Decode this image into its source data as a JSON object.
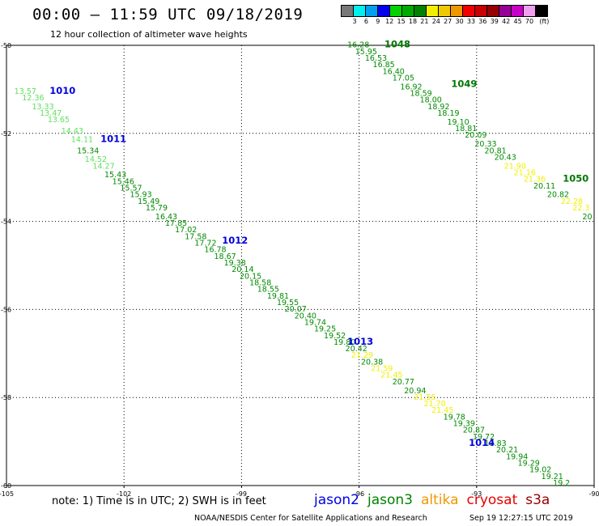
{
  "header": {
    "title": "00:00 – 11:59 UTC 09/18/2019",
    "subtitle": "12 hour collection of altimeter wave heights"
  },
  "legend": {
    "colors": [
      "#787878",
      "#00f0f0",
      "#00a0f0",
      "#0000f0",
      "#00d200",
      "#00aa00",
      "#008200",
      "#f0f000",
      "#f0c800",
      "#f09600",
      "#f00000",
      "#c80000",
      "#960000",
      "#960096",
      "#c800c8",
      "#f0a0f0",
      "#000000"
    ],
    "levels": [
      "3",
      "6",
      "9",
      "12",
      "15",
      "18",
      "21",
      "24",
      "27",
      "30",
      "33",
      "36",
      "39",
      "42",
      "45",
      "70"
    ],
    "unit": "(ft)"
  },
  "map": {
    "lon_ticks": [
      "-105",
      "-102",
      "-99",
      "-96",
      "-93",
      "-90"
    ],
    "lat_ticks": [
      "-50",
      "-52",
      "-54",
      "-56",
      "-58",
      "-60"
    ]
  },
  "tracks": [
    {
      "name": "A",
      "passes": [
        {
          "label": "1010",
          "lon": -103.9,
          "lat": -51.1
        },
        {
          "label": "1011",
          "lon": -102.6,
          "lat": -52.2
        },
        {
          "label": "1012",
          "lon": -99.5,
          "lat": -54.5
        },
        {
          "label": "1013",
          "lon": -96.3,
          "lat": -56.8
        },
        {
          "label": "1014",
          "lon": -93.2,
          "lat": -59.1
        }
      ],
      "points": [
        {
          "v": "13.57",
          "lon": -104.8,
          "lat": -51.1
        },
        {
          "v": "12.36",
          "lon": -104.6,
          "lat": -51.25
        },
        {
          "v": "13.33",
          "lon": -104.35,
          "lat": -51.45
        },
        {
          "v": "13.47",
          "lon": -104.15,
          "lat": -51.6
        },
        {
          "v": "13.65",
          "lon": -103.95,
          "lat": -51.75
        },
        {
          "v": "14.43",
          "lon": -103.6,
          "lat": -52.0
        },
        {
          "v": "14.11",
          "lon": -103.35,
          "lat": -52.2
        },
        {
          "v": "15.34",
          "lon": -103.2,
          "lat": -52.45
        },
        {
          "v": "14.52",
          "lon": -103.0,
          "lat": -52.65
        },
        {
          "v": "14.27",
          "lon": -102.8,
          "lat": -52.8
        },
        {
          "v": "15.43",
          "lon": -102.5,
          "lat": -53.0
        },
        {
          "v": "15.46",
          "lon": -102.3,
          "lat": -53.15
        },
        {
          "v": "15.57",
          "lon": -102.1,
          "lat": -53.3
        },
        {
          "v": "15.93",
          "lon": -101.85,
          "lat": -53.45
        },
        {
          "v": "15.49",
          "lon": -101.65,
          "lat": -53.6
        },
        {
          "v": "15.79",
          "lon": -101.45,
          "lat": -53.75
        },
        {
          "v": "16.43",
          "lon": -101.2,
          "lat": -53.95
        },
        {
          "v": "17.85",
          "lon": -100.95,
          "lat": -54.1
        },
        {
          "v": "17.02",
          "lon": -100.7,
          "lat": -54.25
        },
        {
          "v": "17.58",
          "lon": -100.45,
          "lat": -54.4
        },
        {
          "v": "17.72",
          "lon": -100.2,
          "lat": -54.55
        },
        {
          "v": "16.78",
          "lon": -99.95,
          "lat": -54.7
        },
        {
          "v": "18.67",
          "lon": -99.7,
          "lat": -54.85
        },
        {
          "v": "19.38",
          "lon": -99.45,
          "lat": -55.0
        },
        {
          "v": "20.14",
          "lon": -99.25,
          "lat": -55.15
        },
        {
          "v": "20.15",
          "lon": -99.05,
          "lat": -55.3
        },
        {
          "v": "18.58",
          "lon": -98.8,
          "lat": -55.45
        },
        {
          "v": "18.55",
          "lon": -98.6,
          "lat": -55.6
        },
        {
          "v": "19.81",
          "lon": -98.35,
          "lat": -55.75
        },
        {
          "v": "19.55",
          "lon": -98.1,
          "lat": -55.9
        },
        {
          "v": "20.07",
          "lon": -97.9,
          "lat": -56.05
        },
        {
          "v": "20.40",
          "lon": -97.65,
          "lat": -56.2
        },
        {
          "v": "19.74",
          "lon": -97.4,
          "lat": -56.35
        },
        {
          "v": "19.25",
          "lon": -97.15,
          "lat": -56.5
        },
        {
          "v": "19.52",
          "lon": -96.9,
          "lat": -56.65
        },
        {
          "v": "19.80",
          "lon": -96.65,
          "lat": -56.8
        },
        {
          "v": "20.42",
          "lon": -96.35,
          "lat": -56.95
        },
        {
          "v": "21.29",
          "lon": -96.2,
          "lat": -57.1
        },
        {
          "v": "20.38",
          "lon": -95.95,
          "lat": -57.25
        },
        {
          "v": "21.59",
          "lon": -95.7,
          "lat": -57.4
        },
        {
          "v": "21.45",
          "lon": -95.45,
          "lat": -57.55
        },
        {
          "v": "20.77",
          "lon": -95.15,
          "lat": -57.7
        },
        {
          "v": "20.94",
          "lon": -94.85,
          "lat": -57.9
        },
        {
          "v": "21.55",
          "lon": -94.6,
          "lat": -58.05
        },
        {
          "v": "21.70",
          "lon": -94.35,
          "lat": -58.2
        },
        {
          "v": "21.45",
          "lon": -94.15,
          "lat": -58.35
        },
        {
          "v": "19.78",
          "lon": -93.85,
          "lat": -58.5
        },
        {
          "v": "19.39",
          "lon": -93.6,
          "lat": -58.65
        },
        {
          "v": "20.87",
          "lon": -93.35,
          "lat": -58.8
        },
        {
          "v": "19.72",
          "lon": -93.1,
          "lat": -58.95
        },
        {
          "v": "19.83",
          "lon": -92.8,
          "lat": -59.1
        },
        {
          "v": "20.21",
          "lon": -92.5,
          "lat": -59.25
        },
        {
          "v": "19.94",
          "lon": -92.25,
          "lat": -59.4
        },
        {
          "v": "19.29",
          "lon": -91.95,
          "lat": -59.55
        },
        {
          "v": "19.02",
          "lon": -91.65,
          "lat": -59.7
        },
        {
          "v": "19.21",
          "lon": -91.35,
          "lat": -59.85
        },
        {
          "v": "19.2",
          "lon": -91.05,
          "lat": -60.0
        }
      ]
    },
    {
      "name": "B",
      "passes": [
        {
          "label": "1048",
          "lon": -95.35,
          "lat": -50.05
        },
        {
          "label": "1049",
          "lon": -93.65,
          "lat": -50.95
        },
        {
          "label": "1050",
          "lon": -90.8,
          "lat": -53.1
        }
      ],
      "points": [
        {
          "v": "16.28",
          "lon": -96.3,
          "lat": -50.05
        },
        {
          "v": "15.95",
          "lon": -96.1,
          "lat": -50.2
        },
        {
          "v": "16.53",
          "lon": -95.85,
          "lat": -50.35
        },
        {
          "v": "16.85",
          "lon": -95.65,
          "lat": -50.5
        },
        {
          "v": "16.40",
          "lon": -95.4,
          "lat": -50.65
        },
        {
          "v": "17.05",
          "lon": -95.15,
          "lat": -50.8
        },
        {
          "v": "16.92",
          "lon": -94.95,
          "lat": -51.0
        },
        {
          "v": "18.59",
          "lon": -94.7,
          "lat": -51.15
        },
        {
          "v": "18.00",
          "lon": -94.45,
          "lat": -51.3
        },
        {
          "v": "18.92",
          "lon": -94.25,
          "lat": -51.45
        },
        {
          "v": "18.19",
          "lon": -94.0,
          "lat": -51.6
        },
        {
          "v": "19.10",
          "lon": -93.75,
          "lat": -51.8
        },
        {
          "v": "18.81",
          "lon": -93.55,
          "lat": -51.95
        },
        {
          "v": "20.09",
          "lon": -93.3,
          "lat": -52.1
        },
        {
          "v": "20.33",
          "lon": -93.05,
          "lat": -52.3
        },
        {
          "v": "20.81",
          "lon": -92.8,
          "lat": -52.45
        },
        {
          "v": "20.43",
          "lon": -92.55,
          "lat": -52.6
        },
        {
          "v": "21.90",
          "lon": -92.3,
          "lat": -52.8
        },
        {
          "v": "21.16",
          "lon": -92.05,
          "lat": -52.95
        },
        {
          "v": "21.36",
          "lon": -91.8,
          "lat": -53.1
        },
        {
          "v": "20.11",
          "lon": -91.55,
          "lat": -53.25
        },
        {
          "v": "20.82",
          "lon": -91.2,
          "lat": -53.45
        },
        {
          "v": "22.28",
          "lon": -90.85,
          "lat": -53.6
        },
        {
          "v": "22.3",
          "lon": -90.55,
          "lat": -53.75
        },
        {
          "v": "20",
          "lon": -90.3,
          "lat": -53.95
        }
      ]
    }
  ],
  "footer": {
    "note": "note: 1) Time is in UTC; 2) SWH is in feet",
    "satellites": [
      {
        "name": "jason2",
        "color": "#0000e6"
      },
      {
        "name": "jason3",
        "color": "#008200"
      },
      {
        "name": "altika",
        "color": "#f09600"
      },
      {
        "name": "cryosat",
        "color": "#e60000"
      },
      {
        "name": "s3a",
        "color": "#960000"
      }
    ],
    "credit": "NOAA/NESDIS Center for Satellite Applications and Research",
    "timestamp": "Sep 19 12:27:15 UTC 2019"
  }
}
